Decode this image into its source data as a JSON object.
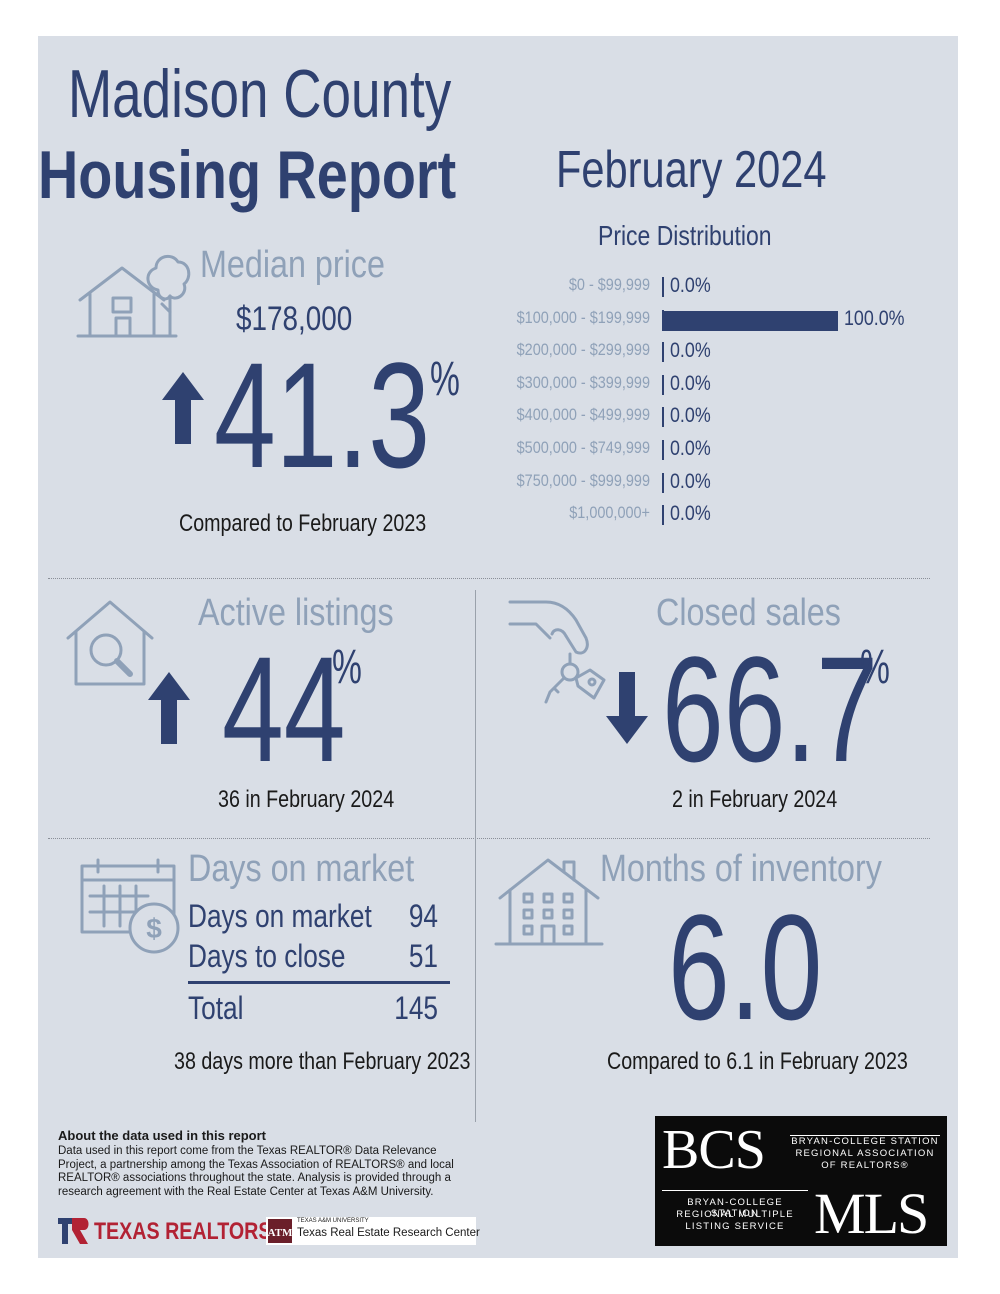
{
  "header": {
    "title_line1": "Madison County",
    "title_line2": "Housing Report",
    "month": "February 2024"
  },
  "median_price": {
    "heading": "Median price",
    "value": "$178,000",
    "direction": "up",
    "change": "41.3",
    "percent_sign": "%",
    "caption": "Compared to February 2023"
  },
  "chart_data": {
    "type": "bar",
    "title": "Price Distribution",
    "categories": [
      "$0 - $99,999",
      "$100,000 - $199,999",
      "$200,000 - $299,999",
      "$300,000 - $399,999",
      "$400,000 - $499,999",
      "$500,000 - $749,999",
      "$750,000 - $999,999",
      "$1,000,000+"
    ],
    "values": [
      0.0,
      100.0,
      0.0,
      0.0,
      0.0,
      0.0,
      0.0,
      0.0
    ],
    "value_labels": [
      "0.0%",
      "100.0%",
      "0.0%",
      "0.0%",
      "0.0%",
      "0.0%",
      "0.0%",
      "0.0%"
    ],
    "orientation": "horizontal",
    "xlim": [
      0,
      100
    ],
    "bar_color": "#2f4170",
    "label_color": "#8fa1b8"
  },
  "active_listings": {
    "heading": "Active listings",
    "direction": "up",
    "change": "44",
    "percent_sign": "%",
    "caption": "36 in February 2024"
  },
  "closed_sales": {
    "heading": "Closed sales",
    "direction": "down",
    "change": "66.7",
    "percent_sign": "%",
    "caption": "2 in February 2024"
  },
  "days_on_market": {
    "heading": "Days on market",
    "rows": [
      {
        "label": "Days on market",
        "value": "94"
      },
      {
        "label": "Days to close",
        "value": "51"
      }
    ],
    "total_label": "Total",
    "total_value": "145",
    "caption": "38 days more than February 2023"
  },
  "months_inventory": {
    "heading": "Months of inventory",
    "value": "6.0",
    "caption": "Compared to 6.1 in February 2023"
  },
  "about": {
    "heading": "About the data used in this report",
    "text": "Data used in this report come from the Texas REALTOR® Data Relevance Project, a partnership among the Texas Association of REALTORS® and local REALTOR® associations throughout the state. Analysis is provided through a research agreement with the Real Estate Center at Texas A&M University."
  },
  "logos": {
    "texas_realtors": "TEXAS REALTORS",
    "tamu_small": "TEXAS A&M UNIVERSITY",
    "tamu_center": "Texas Real Estate Research Center",
    "bcs_big": "BCS",
    "bcs_line1": "BRYAN-COLLEGE STATION",
    "bcs_line2": "REGIONAL ASSOCIATION",
    "bcs_line3": "OF REALTORS®",
    "mls_line1": "BRYAN-COLLEGE STATION",
    "mls_line2": "REGIONAL MULTIPLE",
    "mls_line3": "LISTING SERVICE",
    "mls_big": "MLS"
  },
  "colors": {
    "navy": "#2f4170",
    "light_blue": "#8fa1b8",
    "panel_bg": "#d9dee6",
    "texas_red": "#b22234"
  },
  "icons": [
    "house-tree-icon",
    "house-search-icon",
    "hand-keys-icon",
    "calendar-dollar-icon",
    "building-icon",
    "arrow-up-icon",
    "arrow-down-icon"
  ]
}
